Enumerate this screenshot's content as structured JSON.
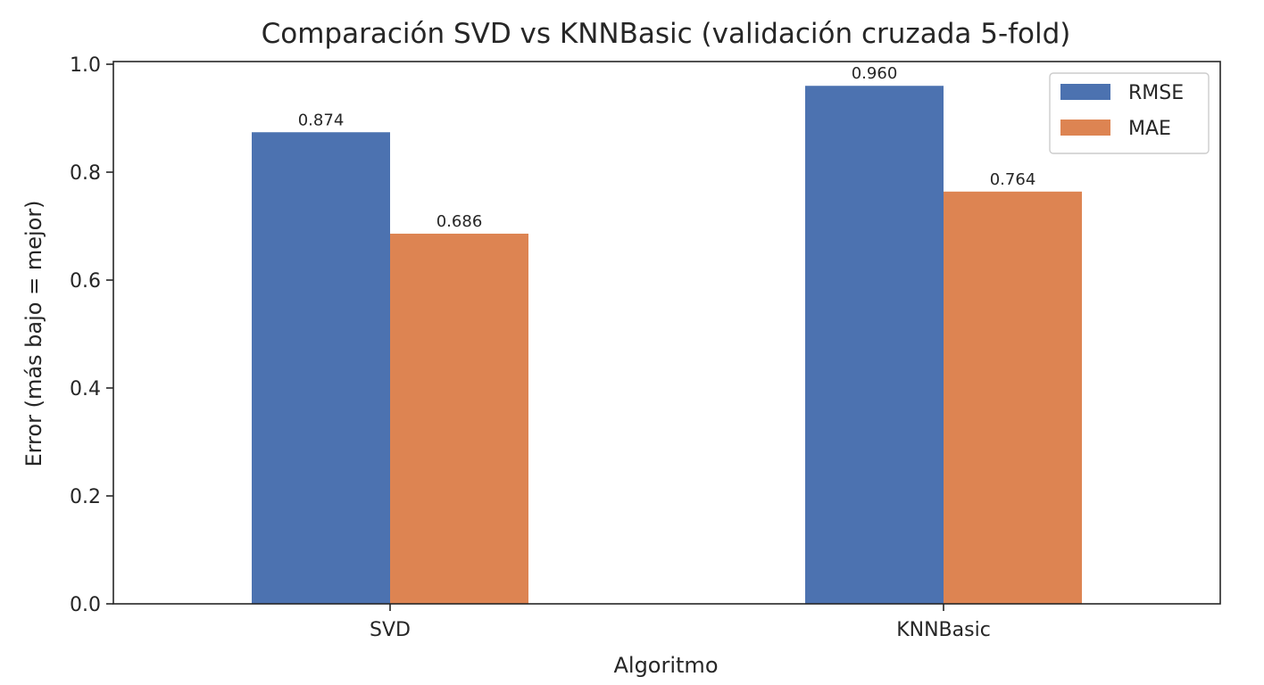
{
  "chart_data": {
    "type": "bar",
    "title": "Comparación SVD vs KNNBasic (validación cruzada 5-fold)",
    "xlabel": "Algoritmo",
    "ylabel": "Error (más bajo = mejor)",
    "categories": [
      "SVD",
      "KNNBasic"
    ],
    "series": [
      {
        "name": "RMSE",
        "color": "#4c72b0",
        "values": [
          0.874,
          0.96
        ],
        "labels": [
          "0.874",
          "0.960"
        ]
      },
      {
        "name": "MAE",
        "color": "#dd8452",
        "values": [
          0.686,
          0.764
        ],
        "labels": [
          "0.686",
          "0.764"
        ]
      }
    ],
    "ylim": [
      0,
      1.005
    ],
    "yticks": [
      0.0,
      0.2,
      0.4,
      0.6,
      0.8,
      1.0
    ],
    "ytick_labels": [
      "0.0",
      "0.2",
      "0.4",
      "0.6",
      "0.8",
      "1.0"
    ],
    "grid": false,
    "legend_position": "top-right"
  }
}
